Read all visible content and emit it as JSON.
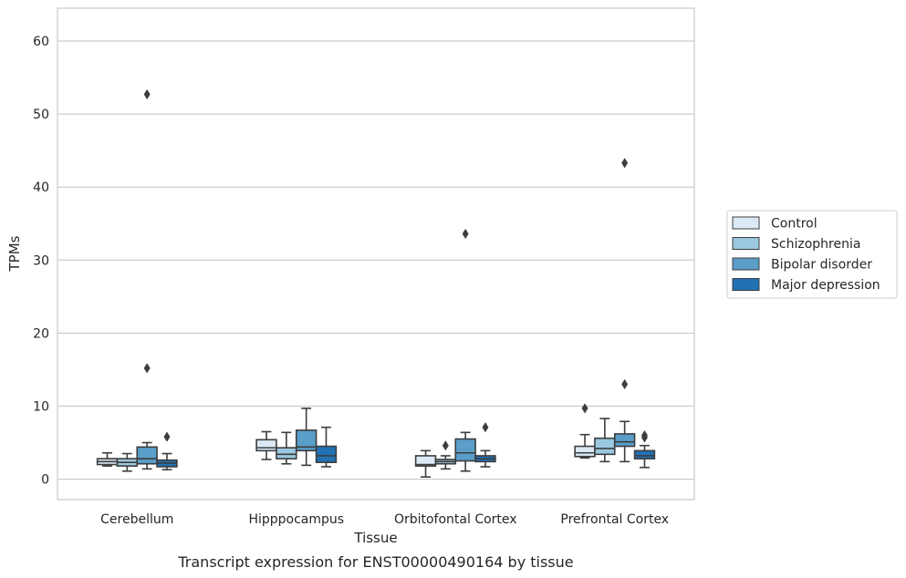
{
  "chart_data": {
    "type": "box",
    "title": "Transcript expression for ENST00000490164 by tissue",
    "xlabel": "Tissue",
    "ylabel": "TPMs",
    "ylim": [
      -2.8,
      64.5
    ],
    "yticks": [
      0,
      10,
      20,
      30,
      40,
      50,
      60
    ],
    "grid": "horizontal",
    "legend_position": "right",
    "categories": [
      "Cerebellum",
      "Hipppocampus",
      "Orbitofontal Cortex",
      "Prefrontal Cortex"
    ],
    "series": [
      {
        "name": "Control",
        "color": "#dbe9f6",
        "boxes": [
          {
            "whislo": 1.8,
            "q1": 2.0,
            "med": 2.4,
            "q3": 2.8,
            "whishi": 3.6,
            "fliers": []
          },
          {
            "whislo": 2.7,
            "q1": 3.9,
            "med": 4.3,
            "q3": 5.4,
            "whishi": 6.5,
            "fliers": []
          },
          {
            "whislo": 0.3,
            "q1": 1.8,
            "med": 2.0,
            "q3": 3.2,
            "whishi": 3.9,
            "fliers": []
          },
          {
            "whislo": 2.9,
            "q1": 3.1,
            "med": 3.6,
            "q3": 4.5,
            "whishi": 6.1,
            "fliers": [
              9.7
            ]
          }
        ]
      },
      {
        "name": "Schizophrenia",
        "color": "#9ac8e0",
        "boxes": [
          {
            "whislo": 1.1,
            "q1": 1.8,
            "med": 2.3,
            "q3": 2.8,
            "whishi": 3.5,
            "fliers": []
          },
          {
            "whislo": 2.1,
            "q1": 2.8,
            "med": 3.4,
            "q3": 4.3,
            "whishi": 6.4,
            "fliers": []
          },
          {
            "whislo": 1.4,
            "q1": 2.1,
            "med": 2.4,
            "q3": 2.7,
            "whishi": 3.2,
            "fliers": [
              4.6
            ]
          },
          {
            "whislo": 2.4,
            "q1": 3.4,
            "med": 4.2,
            "q3": 5.6,
            "whishi": 8.3,
            "fliers": []
          }
        ]
      },
      {
        "name": "Bipolar disorder",
        "color": "#5a9ec9",
        "boxes": [
          {
            "whislo": 1.4,
            "q1": 2.1,
            "med": 2.8,
            "q3": 4.4,
            "whishi": 5.0,
            "fliers": [
              15.2,
              52.7
            ]
          },
          {
            "whislo": 1.9,
            "q1": 3.9,
            "med": 4.4,
            "q3": 6.7,
            "whishi": 9.7,
            "fliers": []
          },
          {
            "whislo": 1.1,
            "q1": 2.5,
            "med": 3.6,
            "q3": 5.5,
            "whishi": 6.4,
            "fliers": [
              33.6
            ]
          },
          {
            "whislo": 2.4,
            "q1": 4.5,
            "med": 5.1,
            "q3": 6.2,
            "whishi": 7.9,
            "fliers": [
              13.0,
              43.3
            ]
          }
        ]
      },
      {
        "name": "Major depression",
        "color": "#2171b5",
        "boxes": [
          {
            "whislo": 1.3,
            "q1": 1.7,
            "med": 2.2,
            "q3": 2.6,
            "whishi": 3.5,
            "fliers": [
              5.8
            ]
          },
          {
            "whislo": 1.7,
            "q1": 2.3,
            "med": 3.2,
            "q3": 4.5,
            "whishi": 7.1,
            "fliers": []
          },
          {
            "whislo": 1.7,
            "q1": 2.4,
            "med": 2.8,
            "q3": 3.2,
            "whishi": 3.9,
            "fliers": [
              7.1
            ]
          },
          {
            "whislo": 1.6,
            "q1": 2.8,
            "med": 3.2,
            "q3": 3.9,
            "whishi": 4.6,
            "fliers": [
              5.7,
              6.0
            ]
          }
        ]
      }
    ]
  }
}
